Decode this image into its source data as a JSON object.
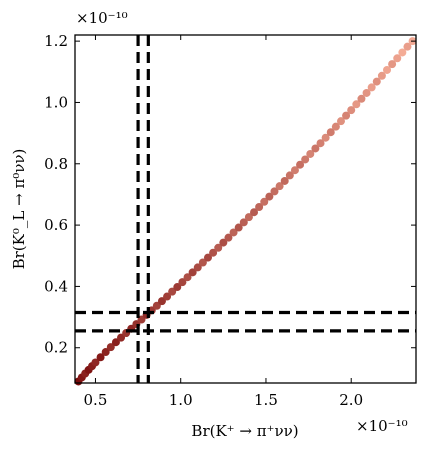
{
  "chart_data": {
    "type": "scatter",
    "title": "",
    "xlabel": "Br(K⁺ → π⁺νν)",
    "ylabel": "Br(K⁰_L → π⁰νν)",
    "x_scale_label": "×10⁻¹⁰",
    "y_scale_label": "×10⁻¹⁰",
    "xlim": [
      0.38,
      2.38
    ],
    "ylim": [
      0.085,
      1.22
    ],
    "x_ticks": [
      {
        "value": 0.5,
        "label": "0.5"
      },
      {
        "value": 1.0,
        "label": "1.0"
      },
      {
        "value": 1.5,
        "label": "1.5"
      },
      {
        "value": 2.0,
        "label": "2.0"
      }
    ],
    "y_ticks": [
      {
        "value": 0.2,
        "label": "0.2"
      },
      {
        "value": 0.4,
        "label": "0.4"
      },
      {
        "value": 0.6,
        "label": "0.6"
      },
      {
        "value": 0.8,
        "label": "0.8"
      },
      {
        "value": 1.0,
        "label": "1.0"
      },
      {
        "value": 1.2,
        "label": "1.2"
      }
    ],
    "vertical_lines_x": [
      0.75,
      0.81
    ],
    "horizontal_lines_y": [
      0.255,
      0.315
    ],
    "series": [
      {
        "color_range": [
          "#7a0c0c",
          "#f7b09a"
        ],
        "points": [
          [
            0.4,
            0.09
          ],
          [
            0.42,
            0.103
          ],
          [
            0.44,
            0.116
          ],
          [
            0.46,
            0.128
          ],
          [
            0.48,
            0.14
          ],
          [
            0.5,
            0.152
          ],
          [
            0.53,
            0.169
          ],
          [
            0.56,
            0.186
          ],
          [
            0.59,
            0.202
          ],
          [
            0.62,
            0.218
          ],
          [
            0.65,
            0.233
          ],
          [
            0.68,
            0.248
          ],
          [
            0.71,
            0.262
          ],
          [
            0.74,
            0.277
          ],
          [
            0.77,
            0.292
          ],
          [
            0.8,
            0.307
          ],
          [
            0.83,
            0.322
          ],
          [
            0.86,
            0.337
          ],
          [
            0.89,
            0.352
          ],
          [
            0.92,
            0.367
          ],
          [
            0.95,
            0.383
          ],
          [
            0.98,
            0.398
          ],
          [
            1.01,
            0.414
          ],
          [
            1.04,
            0.43
          ],
          [
            1.07,
            0.446
          ],
          [
            1.1,
            0.462
          ],
          [
            1.13,
            0.478
          ],
          [
            1.16,
            0.494
          ],
          [
            1.19,
            0.51
          ],
          [
            1.22,
            0.526
          ],
          [
            1.25,
            0.543
          ],
          [
            1.28,
            0.559
          ],
          [
            1.31,
            0.576
          ],
          [
            1.34,
            0.592
          ],
          [
            1.37,
            0.609
          ],
          [
            1.4,
            0.626
          ],
          [
            1.43,
            0.642
          ],
          [
            1.46,
            0.659
          ],
          [
            1.49,
            0.676
          ],
          [
            1.52,
            0.693
          ],
          [
            1.55,
            0.71
          ],
          [
            1.58,
            0.727
          ],
          [
            1.61,
            0.744
          ],
          [
            1.64,
            0.762
          ],
          [
            1.67,
            0.779
          ],
          [
            1.7,
            0.797
          ],
          [
            1.73,
            0.814
          ],
          [
            1.76,
            0.832
          ],
          [
            1.79,
            0.85
          ],
          [
            1.82,
            0.867
          ],
          [
            1.85,
            0.885
          ],
          [
            1.88,
            0.903
          ],
          [
            1.91,
            0.921
          ],
          [
            1.94,
            0.939
          ],
          [
            1.97,
            0.957
          ],
          [
            2.0,
            0.975
          ],
          [
            2.03,
            0.994
          ],
          [
            2.06,
            1.012
          ],
          [
            2.09,
            1.031
          ],
          [
            2.12,
            1.049
          ],
          [
            2.15,
            1.068
          ],
          [
            2.18,
            1.087
          ],
          [
            2.21,
            1.106
          ],
          [
            2.24,
            1.125
          ],
          [
            2.27,
            1.144
          ],
          [
            2.3,
            1.163
          ],
          [
            2.33,
            1.182
          ],
          [
            2.36,
            1.2
          ]
        ]
      }
    ]
  }
}
